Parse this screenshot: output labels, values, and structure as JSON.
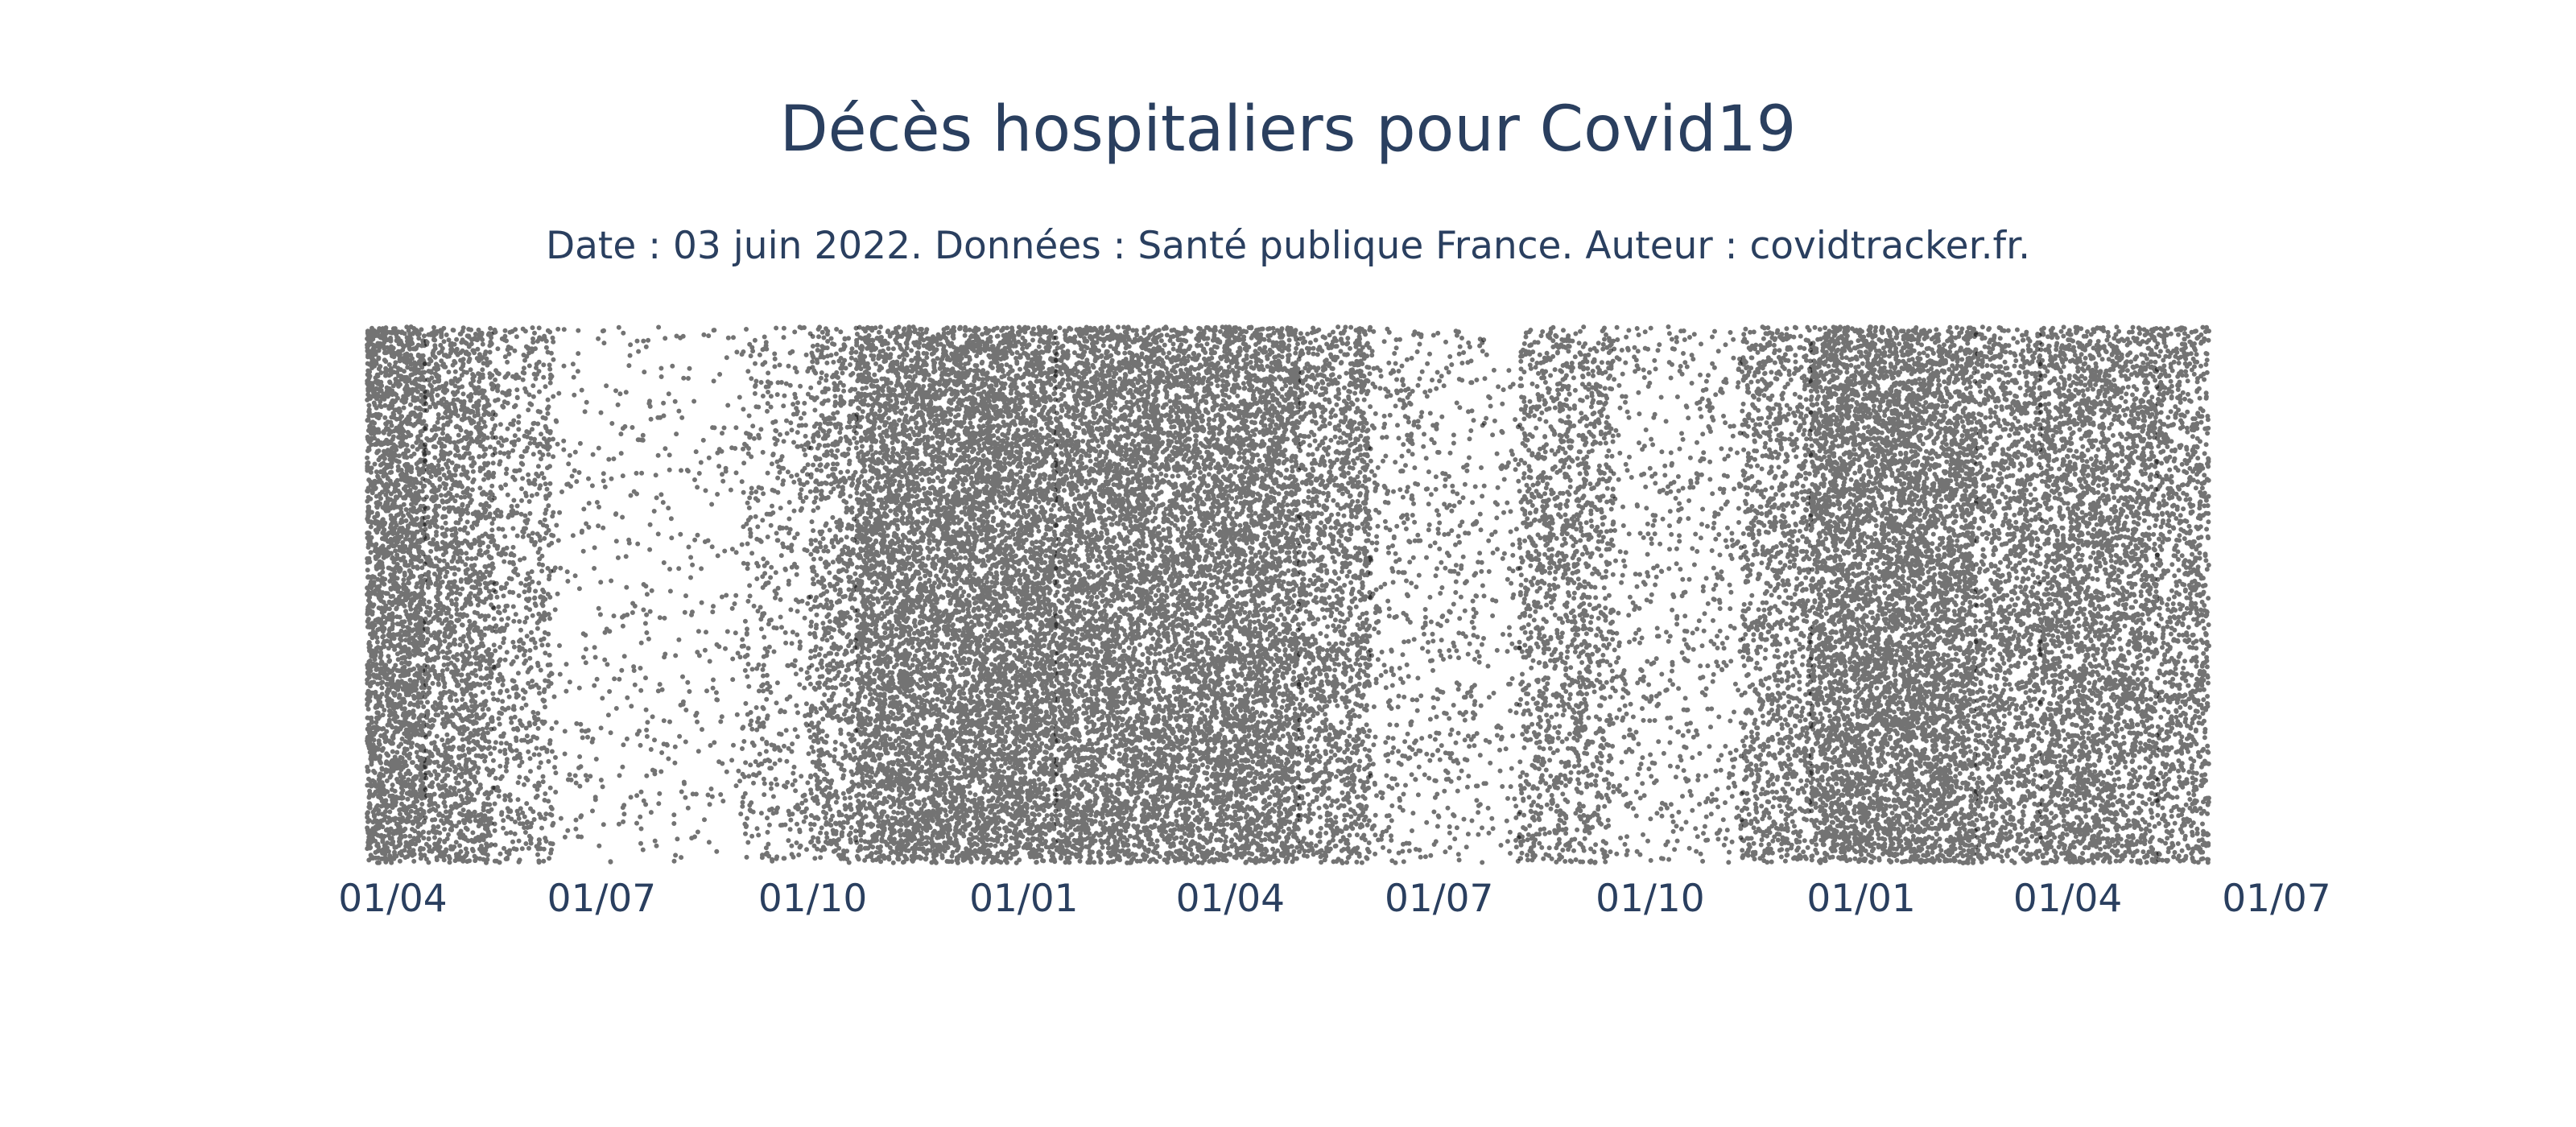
{
  "chart_data": {
    "type": "scatter",
    "title": "Décès hospitaliers pour Covid19",
    "subtitle": "Date : 03 juin 2022. Données : Santé publique France. Auteur : covidtracker.fr.",
    "xlabel": "",
    "ylabel": "",
    "x_range": [
      "2020-03-20",
      "2022-06-02"
    ],
    "x_tick_labels": [
      {
        "date": "2020-04-01",
        "label": "01/04"
      },
      {
        "date": "2020-07-01",
        "label": "01/07"
      },
      {
        "date": "2020-10-01",
        "label": "01/10"
      },
      {
        "date": "2021-01-01",
        "label": "01/01"
      },
      {
        "date": "2021-04-01",
        "label": "01/04"
      },
      {
        "date": "2021-07-01",
        "label": "01/07"
      },
      {
        "date": "2021-10-01",
        "label": "01/10"
      },
      {
        "date": "2022-01-01",
        "label": "01/01"
      },
      {
        "date": "2022-04-01",
        "label": "01/04"
      },
      {
        "date": "2022-07-01",
        "label": "01/07"
      }
    ],
    "y_axis_visible": false,
    "grid": false,
    "marker_color": "#000000",
    "description_of_points": "one point per hospital death, x = date of death, y = random jitter",
    "density_by_period": [
      {
        "start": "2020-03-20",
        "end": "2020-04-15",
        "relative_density": 1.0
      },
      {
        "start": "2020-04-15",
        "end": "2020-05-15",
        "relative_density": 0.65
      },
      {
        "start": "2020-05-15",
        "end": "2020-06-10",
        "relative_density": 0.3
      },
      {
        "start": "2020-06-10",
        "end": "2020-08-31",
        "relative_density": 0.06
      },
      {
        "start": "2020-08-31",
        "end": "2020-09-30",
        "relative_density": 0.18
      },
      {
        "start": "2020-09-30",
        "end": "2020-10-20",
        "relative_density": 0.45
      },
      {
        "start": "2020-10-20",
        "end": "2021-01-15",
        "relative_density": 0.95
      },
      {
        "start": "2021-01-15",
        "end": "2021-05-01",
        "relative_density": 0.85
      },
      {
        "start": "2021-05-01",
        "end": "2021-06-01",
        "relative_density": 0.55
      },
      {
        "start": "2021-06-01",
        "end": "2021-07-20",
        "relative_density": 0.14
      },
      {
        "start": "2021-07-20",
        "end": "2021-08-05",
        "relative_density": 0.08
      },
      {
        "start": "2021-08-05",
        "end": "2021-09-15",
        "relative_density": 0.4
      },
      {
        "start": "2021-09-15",
        "end": "2021-11-10",
        "relative_density": 0.12
      },
      {
        "start": "2021-11-10",
        "end": "2021-12-10",
        "relative_density": 0.45
      },
      {
        "start": "2021-12-10",
        "end": "2022-02-20",
        "relative_density": 0.9
      },
      {
        "start": "2022-02-20",
        "end": "2022-03-20",
        "relative_density": 0.55
      },
      {
        "start": "2022-03-20",
        "end": "2022-05-10",
        "relative_density": 0.68
      },
      {
        "start": "2022-05-10",
        "end": "2022-06-02",
        "relative_density": 0.5
      }
    ]
  }
}
